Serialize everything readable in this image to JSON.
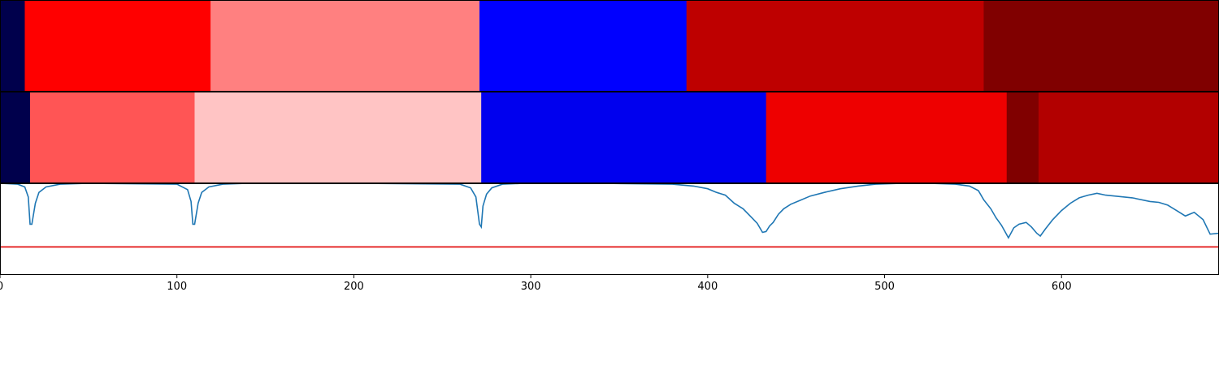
{
  "chart_data": {
    "type": "heatmap",
    "title": "",
    "xlabel": "",
    "ylabel": "",
    "xlim": [
      0,
      689
    ],
    "x_ticks": [
      "0",
      "100",
      "200",
      "300",
      "400",
      "500",
      "600"
    ],
    "x_tick_values": [
      0,
      100,
      200,
      300,
      400,
      500,
      600
    ],
    "segmentation_tracks": [
      {
        "segments": [
          {
            "start": 0,
            "end": 14,
            "color": "#00004c"
          },
          {
            "start": 14,
            "end": 119,
            "color": "#ff0000"
          },
          {
            "start": 119,
            "end": 271,
            "color": "#ff8080"
          },
          {
            "start": 271,
            "end": 388,
            "color": "#0000ff"
          },
          {
            "start": 388,
            "end": 556,
            "color": "#be0000"
          },
          {
            "start": 556,
            "end": 689,
            "color": "#800000"
          }
        ]
      },
      {
        "segments": [
          {
            "start": 0,
            "end": 17,
            "color": "#00004c"
          },
          {
            "start": 17,
            "end": 110,
            "color": "#ff5555"
          },
          {
            "start": 110,
            "end": 272,
            "color": "#ffc4c4"
          },
          {
            "start": 272,
            "end": 433,
            "color": "#0000ee"
          },
          {
            "start": 433,
            "end": 569,
            "color": "#ee0000"
          },
          {
            "start": 569,
            "end": 587,
            "color": "#800000"
          },
          {
            "start": 587,
            "end": 689,
            "color": "#b20000"
          }
        ]
      }
    ],
    "line_panel": {
      "ylim": [
        0,
        1
      ],
      "threshold": 0.3,
      "threshold_color": "#e00000",
      "line_color": "#1f77b4",
      "series": {
        "x": [
          0,
          10,
          14,
          16,
          17,
          18,
          20,
          22,
          26,
          34,
          50,
          100,
          106,
          108,
          109,
          110,
          112,
          114,
          118,
          126,
          140,
          200,
          260,
          266,
          269,
          271,
          272,
          273,
          275,
          278,
          284,
          296,
          340,
          380,
          392,
          400,
          405,
          410,
          415,
          420,
          425,
          428,
          431,
          433,
          435,
          437,
          440,
          443,
          447,
          452,
          458,
          466,
          475,
          485,
          495,
          510,
          525,
          540,
          548,
          553,
          556,
          560,
          563,
          566,
          568,
          570,
          573,
          576,
          580,
          583,
          586,
          588,
          591,
          595,
          600,
          605,
          610,
          615,
          620,
          625,
          630,
          640,
          650,
          655,
          660,
          665,
          670,
          675,
          680,
          684,
          689
        ],
        "y": [
          1.0,
          0.99,
          0.96,
          0.85,
          0.55,
          0.55,
          0.78,
          0.9,
          0.96,
          0.99,
          1.0,
          0.99,
          0.93,
          0.8,
          0.55,
          0.55,
          0.78,
          0.9,
          0.96,
          0.99,
          1.0,
          1.0,
          0.99,
          0.95,
          0.85,
          0.55,
          0.52,
          0.75,
          0.88,
          0.95,
          0.99,
          1.0,
          1.0,
          0.99,
          0.97,
          0.94,
          0.9,
          0.87,
          0.78,
          0.72,
          0.62,
          0.56,
          0.46,
          0.47,
          0.53,
          0.57,
          0.66,
          0.72,
          0.77,
          0.81,
          0.86,
          0.9,
          0.94,
          0.97,
          0.99,
          1.0,
          1.0,
          0.99,
          0.97,
          0.92,
          0.82,
          0.72,
          0.62,
          0.54,
          0.47,
          0.4,
          0.51,
          0.55,
          0.57,
          0.52,
          0.45,
          0.42,
          0.5,
          0.6,
          0.7,
          0.78,
          0.84,
          0.87,
          0.89,
          0.87,
          0.86,
          0.84,
          0.8,
          0.79,
          0.76,
          0.7,
          0.64,
          0.68,
          0.6,
          0.44,
          0.45
        ]
      }
    }
  }
}
